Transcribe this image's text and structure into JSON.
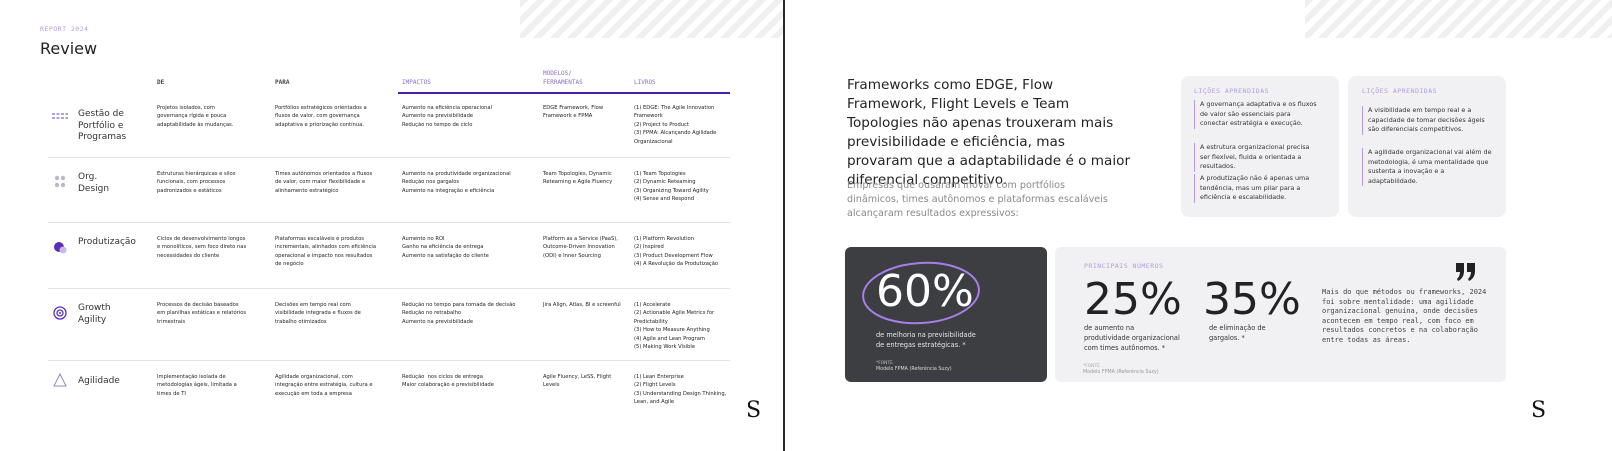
{
  "left": {
    "eyebrow": "REPORT 2024",
    "title": "Review",
    "headers": [
      "DE",
      "PARA",
      "IMPACTOS",
      "MODELOS/ FERRAMENTAS",
      "LIVROS"
    ],
    "rows": [
      {
        "label": "Gestão de Portfólio e Programas",
        "from": "Projetos isolados, com governança rígida e pouca adaptabilidade às mudanças.",
        "to": "Portfólios estratégicos orientados a fluxos de valor, com governança adaptativa e priorização contínua.",
        "impacts": [
          "Aumento na eficiência operacional",
          "Aumento na previsibilidade",
          "Redução no tempo de ciclo"
        ],
        "tools": "EDGE Framework, Flow Framework e FPMA",
        "books": [
          "(1) EDGE: The Agile Innovation Framework",
          "(2) Project to Product",
          "(3) FPMA: Alcançando Agilidade Organizacional"
        ]
      },
      {
        "label": "Org. Design",
        "from": "Estruturas hierárquicas e silos funcionais, com processos padronizados e estáticos",
        "to": "Times autônomos orientados a fluxos de valor, com maior flexibilidade e alinhamento estratégico",
        "impacts": [
          "Aumento na produtividade organizacional",
          "Redução nos gargalos",
          "Aumento na integração e eficiência"
        ],
        "tools": "Team Topologies, Dynamic Reteaming e Agile Fluency",
        "books": [
          "(1) Team Topologies",
          "(2) Dynamic Reteaming",
          "(3) Organizing Toward Agility",
          "(4) Sense and Respond"
        ]
      },
      {
        "label": "Produtização",
        "from": "Ciclos de desenvolvimento longos e monolíticos, sem foco direto nas necessidades do cliente",
        "to": "Plataformas escaláveis e produtos incrementais, alinhados com eficiência operacional e impacto nos resultados de negócio",
        "impacts": [
          "Aumento no ROI",
          "Ganho na eficiência de entrega",
          "Aumento na satisfação do cliente"
        ],
        "tools": "Platform as a Service (PaaS), Outcome-Driven Innovation (ODI) e Inner Sourcing",
        "books": [
          "(1) Platform Revolution",
          "(2) Inspired",
          "(3) Product Development Flow",
          "(4) A Revolução da Produtização"
        ]
      },
      {
        "label": "Growth Agility",
        "from": "Processos de decisão baseados em planilhas estáticas e relatórios trimestrais",
        "to": "Decisões em tempo real com visibilidade integrada e fluxos de trabalho otimizados",
        "impacts": [
          "Redução no tempo para tomada de decisão",
          "Redução no retrabalho",
          "Aumento na previsibilidade"
        ],
        "tools": "Jira Align, Atlas, BI e screenful",
        "books": [
          "(1) Accelerate",
          "(2) Actionable Agile Metrics for Predictability",
          "(3) How to Measure Anything",
          "(4) Agile and Lean Program",
          "(5) Making Work Visible"
        ]
      },
      {
        "label": "Agilidade",
        "from": "Implementação isolada de metodologias ágeis, limitada a times de TI",
        "to": "Agilidade organizacional, com integração entre estratégia, cultura e execução em toda a empresa",
        "impacts": [
          "Redução  nos ciclos de entrega",
          "Maior colaboração e previsibilidade"
        ],
        "tools": "Agile Fluency, LeSS, Flight Levels",
        "books": [
          "(1) Lean Enterprise",
          "(2) Flight Levels",
          "(3) Understanding Design Thinking, Lean, and Agile"
        ]
      }
    ],
    "logo": "S"
  },
  "right": {
    "heading": "Frameworks como EDGE, Flow Framework, Flight Levels e Team Topologies não apenas trouxeram mais previsibilidade e eficiência, mas provaram que a adaptabilidade é o maior diferencial competitivo.",
    "subheading": "Empresas que ousaram inovar com portfólios dinâmicos, times autônomos e plataformas escaláveis alcançaram resultados expressivos:",
    "lessons": [
      {
        "title": "LIÇÕES APRENDIDAS",
        "items": [
          "A governança adaptativa e os fluxos de valor são essenciais para conectar estratégia e execução.",
          "A estrutura organizacional precisa ser flexível, fluida e orientada a resultados.",
          "A produtização não é apenas uma tendência, mas um pilar para a eficiência e escalabilidade."
        ]
      },
      {
        "title": "LIÇÕES APRENDIDAS",
        "items": [
          "A visibilidade em tempo real e a capacidade de tomar decisões ágeis são diferenciais competitivos.",
          "A agilidade organizacional vai além de metodologia, é uma mentalidade que sustenta a inovação e a adaptabilidade."
        ]
      }
    ],
    "highlight": {
      "number": "60%",
      "caption": "de melhoria na previsibilidade de entregas estratégicas. *",
      "source_label": "*FONTE",
      "source": "Modelo FPMA (Referência Suzy)"
    },
    "numbers": {
      "title": "PRINCIPAIS NÚMEROS",
      "stats": [
        {
          "number": "25%",
          "caption": "de aumento na produtividade organizacional com times autônomos. *"
        },
        {
          "number": "35%",
          "caption": "de eliminação de gargalos. *"
        }
      ],
      "source_label": "*FONTE",
      "source": "Modelo FPMA (Referência Suzy)",
      "quote": "Mais do que métodos ou frameworks, 2024 foi sobre mentalidade: uma agilidade organizacional genuína, onde decisões acontecem em tempo real, com foco em resultados concretos e na colaboração entre todas as áreas."
    },
    "logo": "S"
  }
}
